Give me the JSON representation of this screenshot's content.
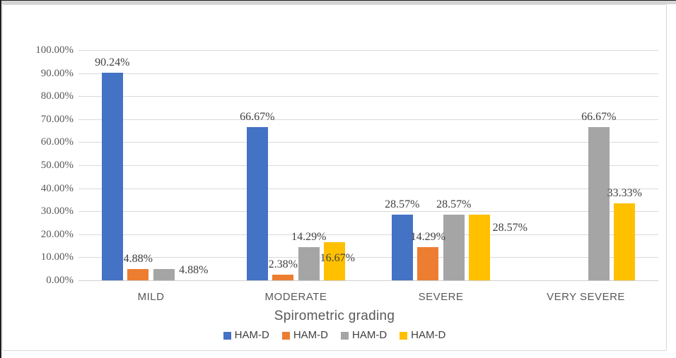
{
  "chart_data": {
    "type": "bar",
    "title": "",
    "xlabel": "Spirometric grading",
    "ylabel": "",
    "grid": true,
    "legend_position": "bottom",
    "y_axis": {
      "min": 0,
      "max": 100,
      "step": 10,
      "unit": "%",
      "tick_labels": [
        "100.00%",
        "90.00%",
        "80.00%",
        "70.00%",
        "60.00%",
        "50.00%",
        "40.00%",
        "30.00%",
        "20.00%",
        "10.00%",
        "0.00%"
      ]
    },
    "categories": [
      "MILD",
      "MODERATE",
      "SEVERE",
      "VERY SEVERE"
    ],
    "series": [
      {
        "name": "HAM-D",
        "color": "#4472C4",
        "values": [
          90.24,
          66.67,
          28.57,
          0
        ],
        "labels": [
          "90.24%",
          "66.67%",
          "28.57%",
          ""
        ],
        "label_offsets": [
          null,
          null,
          null,
          null
        ]
      },
      {
        "name": "HAM-D",
        "color": "#ED7D31",
        "values": [
          4.88,
          2.38,
          14.29,
          0
        ],
        "labels": [
          "4.88%",
          "2.38%",
          "14.29%",
          ""
        ],
        "label_offsets": [
          null,
          null,
          null,
          null
        ]
      },
      {
        "name": "HAM-D",
        "color": "#A5A5A5",
        "values": [
          4.88,
          14.29,
          28.57,
          66.67
        ],
        "labels": [
          "4.88%",
          "14.29%",
          "28.57%",
          "66.67%"
        ],
        "label_offsets": [
          [
            42,
            16
          ],
          null,
          null,
          null
        ]
      },
      {
        "name": "HAM-D",
        "color": "#FFC000",
        "values": [
          0,
          16.67,
          28.57,
          33.33
        ],
        "labels": [
          "",
          "16.67%",
          "28.57%",
          "33.33%"
        ],
        "label_offsets": [
          null,
          [
            4,
            37
          ],
          [
            43,
            33
          ],
          null
        ]
      }
    ]
  }
}
